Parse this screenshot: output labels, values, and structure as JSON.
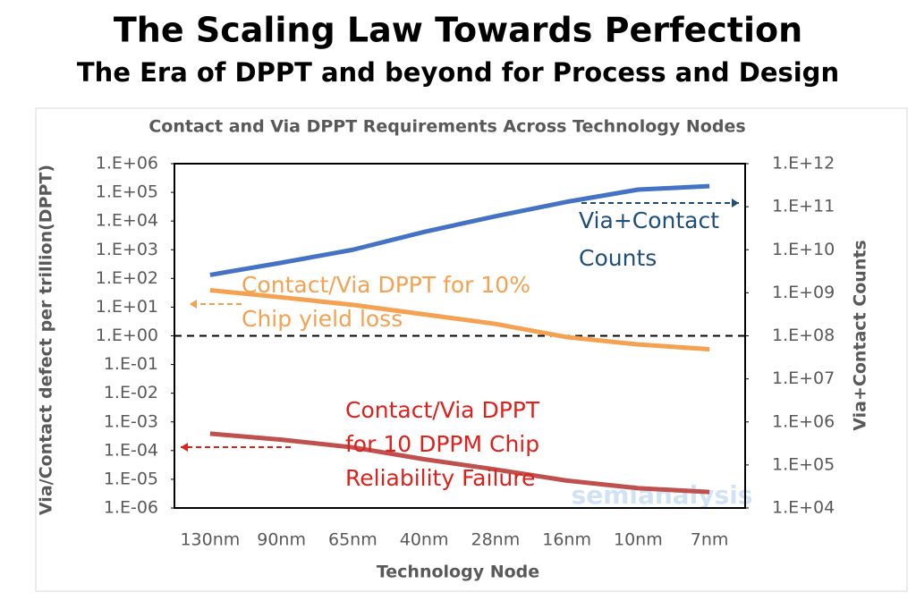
{
  "header": {
    "title": "The Scaling Law Towards Perfection",
    "subtitle": "The Era of DPPT and beyond for Process and Design"
  },
  "chart_data": {
    "type": "line",
    "title": "Contact and Via DPPT Requirements Across Technology Nodes",
    "x_label": "Technology Node",
    "y_label": "Via/Contact defect per trillion(DPPT)",
    "y2_label": "Via+Contact Counts",
    "categories": [
      "130nm",
      "90nm",
      "65nm",
      "40nm",
      "28nm",
      "16nm",
      "10nm",
      "7nm"
    ],
    "log_y": true,
    "log_y2": true,
    "ylim": [
      1e-06,
      1000000
    ],
    "yticks": [
      {
        "value": 1000000,
        "label": "1.E+06"
      },
      {
        "value": 100000,
        "label": "1.E+05"
      },
      {
        "value": 10000,
        "label": "1.E+04"
      },
      {
        "value": 1000,
        "label": "1.E+03"
      },
      {
        "value": 100,
        "label": "1.E+02"
      },
      {
        "value": 10,
        "label": "1.E+01"
      },
      {
        "value": 1,
        "label": "1.E+00"
      },
      {
        "value": 0.1,
        "label": "1.E-01"
      },
      {
        "value": 0.01,
        "label": "1.E-02"
      },
      {
        "value": 0.001,
        "label": "1.E-03"
      },
      {
        "value": 0.0001,
        "label": "1.E-04"
      },
      {
        "value": 1e-05,
        "label": "1.E-05"
      },
      {
        "value": 1e-06,
        "label": "1.E-06"
      }
    ],
    "y2lim": [
      10000,
      1000000000000
    ],
    "y2ticks": [
      {
        "value": 1000000000000,
        "label": "1.E+12"
      },
      {
        "value": 100000000000,
        "label": "1.E+11"
      },
      {
        "value": 10000000000,
        "label": "1.E+10"
      },
      {
        "value": 1000000000,
        "label": "1.E+09"
      },
      {
        "value": 100000000,
        "label": "1.E+08"
      },
      {
        "value": 10000000,
        "label": "1.E+07"
      },
      {
        "value": 1000000,
        "label": "1.E+06"
      },
      {
        "value": 100000,
        "label": "1.E+05"
      },
      {
        "value": 10000,
        "label": "1.E+04"
      }
    ],
    "hline": 1,
    "series": [
      {
        "color": "#4472c4",
        "axis": "y2",
        "values": [
          2600000000,
          5000000000,
          10000000000,
          26000000000,
          60000000000,
          130000000000,
          250000000000,
          300000000000
        ]
      },
      {
        "color": "#f4a251",
        "values": [
          39,
          22,
          12,
          5.6,
          2.6,
          0.9,
          0.5,
          0.34
        ]
      },
      {
        "color": "#c0504d",
        "values": [
          0.00039,
          0.00024,
          0.00013,
          5e-05,
          2.2e-05,
          9e-06,
          4.9e-06,
          3.6e-06
        ]
      }
    ],
    "annotations": [
      {
        "lines": [
          "Via+Contact",
          "Counts"
        ],
        "color": "#1f4e79"
      },
      {
        "lines": [
          "Contact/Via DPPT for 10%",
          "Chip yield loss"
        ],
        "color": "#f4a251"
      },
      {
        "lines": [
          "Contact/Via DPPT",
          "for 10 DPPM Chip",
          "Reliability Failure"
        ],
        "color": "#e0201b"
      }
    ],
    "watermark": "semianalysis"
  }
}
